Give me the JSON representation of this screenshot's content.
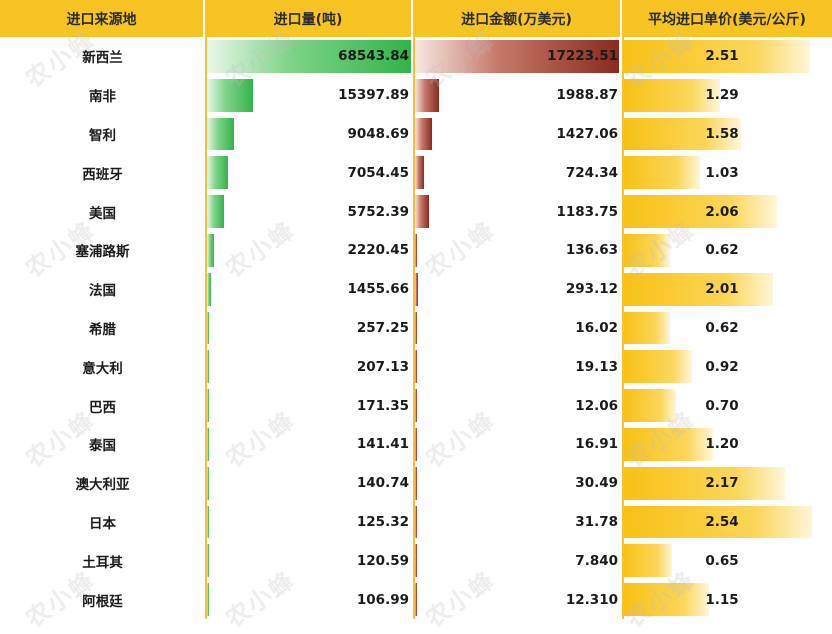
{
  "headers": {
    "origin": "进口来源地",
    "volume": "进口量(吨)",
    "value": "进口金额(万美元)",
    "price": "平均进口单价(美元/公斤)"
  },
  "colors": {
    "header_bg": "#f7c424",
    "volume_bar": "#33b34a",
    "value_bar": "#8a2a1e",
    "price_bar": "#f8c114"
  },
  "watermark": "农小蜂",
  "rows": [
    {
      "origin": "新西兰",
      "volume": "68543.84",
      "value": "17223.51",
      "price": "2.51"
    },
    {
      "origin": "南非",
      "volume": "15397.89",
      "value": "1988.87",
      "price": "1.29"
    },
    {
      "origin": "智利",
      "volume": "9048.69",
      "value": "1427.06",
      "price": "1.58"
    },
    {
      "origin": "西班牙",
      "volume": "7054.45",
      "value": "724.34",
      "price": "1.03"
    },
    {
      "origin": "美国",
      "volume": "5752.39",
      "value": "1183.75",
      "price": "2.06"
    },
    {
      "origin": "塞浦路斯",
      "volume": "2220.45",
      "value": "136.63",
      "price": "0.62"
    },
    {
      "origin": "法国",
      "volume": "1455.66",
      "value": "293.12",
      "price": "2.01"
    },
    {
      "origin": "希腊",
      "volume": "257.25",
      "value": "16.02",
      "price": "0.62"
    },
    {
      "origin": "意大利",
      "volume": "207.13",
      "value": "19.13",
      "price": "0.92"
    },
    {
      "origin": "巴西",
      "volume": "171.35",
      "value": "12.06",
      "price": "0.70"
    },
    {
      "origin": "泰国",
      "volume": "141.41",
      "value": "16.91",
      "price": "1.20"
    },
    {
      "origin": "澳大利亚",
      "volume": "140.74",
      "value": "30.49",
      "price": "2.17"
    },
    {
      "origin": "日本",
      "volume": "125.32",
      "value": "31.78",
      "price": "2.54"
    },
    {
      "origin": "土耳其",
      "volume": "120.59",
      "value": "7.840",
      "price": "0.65"
    },
    {
      "origin": "阿根廷",
      "volume": "106.99",
      "value": "12.310",
      "price": "1.15"
    }
  ]
}
